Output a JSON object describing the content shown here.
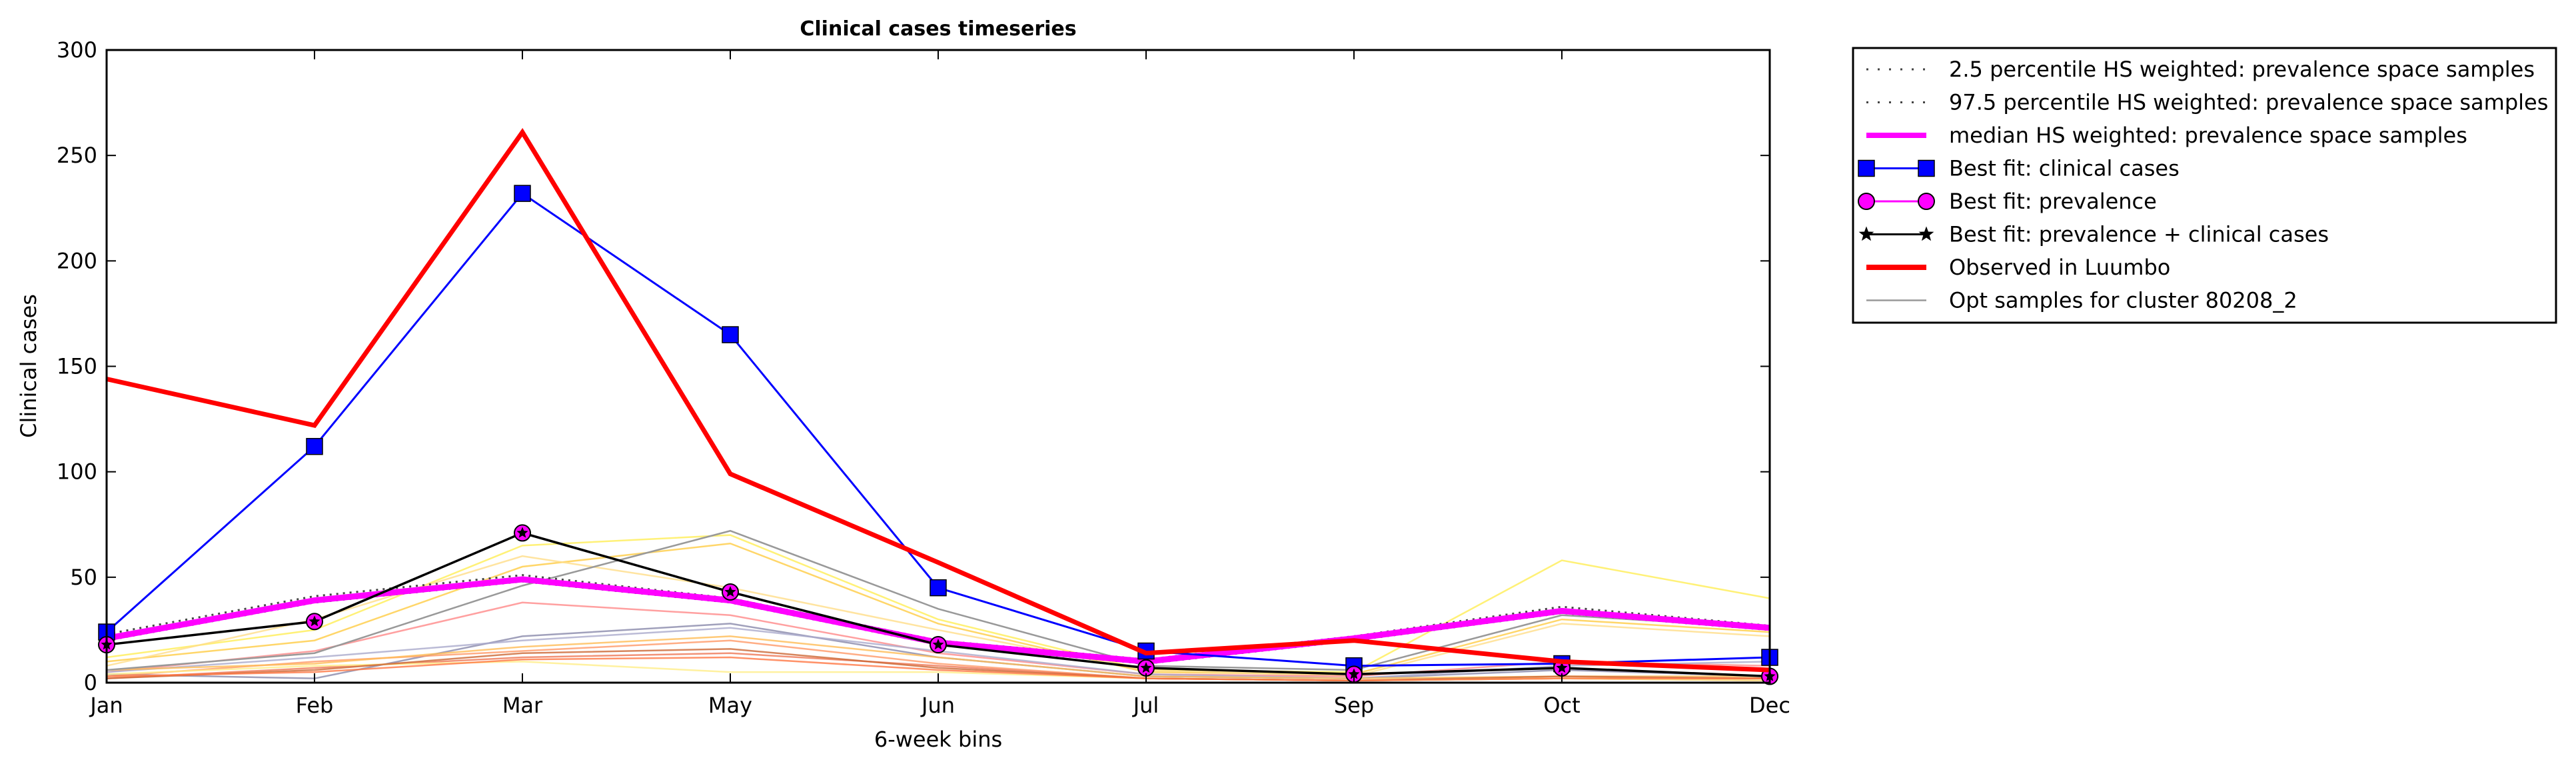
{
  "chart_data": {
    "type": "line",
    "title": "Clinical cases timeseries",
    "xlabel": "6-week bins",
    "ylabel": "Clinical cases",
    "categories": [
      "Jan",
      "Feb",
      "Mar",
      "May",
      "Jun",
      "Jul",
      "Sep",
      "Oct",
      "Dec"
    ],
    "ylim": [
      0,
      300
    ],
    "yticks": [
      0,
      50,
      100,
      150,
      200,
      250,
      300
    ],
    "grid": false,
    "legend_placement": "outside top-right",
    "series": [
      {
        "name": "2.5 percentile HS weighted: prevalence space samples",
        "style": "dotted",
        "color": "#444444",
        "values": [
          20,
          38,
          48,
          38,
          18,
          9,
          20,
          33,
          25
        ]
      },
      {
        "name": "97.5 percentile HS weighted: prevalence space samples",
        "style": "dotted",
        "color": "#444444",
        "values": [
          23,
          41,
          51,
          40,
          20,
          11,
          22,
          36,
          27
        ]
      },
      {
        "name": "median HS weighted: prevalence space samples",
        "style": "thick-line",
        "color": "#ff00ff",
        "values": [
          21,
          39,
          49,
          39,
          19,
          10,
          21,
          34,
          26
        ]
      },
      {
        "name": "Best fit: clinical cases",
        "style": "line-square",
        "color": "#0000ff",
        "values": [
          24,
          112,
          232,
          165,
          45,
          15,
          8,
          9,
          12
        ]
      },
      {
        "name": "Best fit: prevalence",
        "style": "line-circle",
        "color": "#ff00ff",
        "values": [
          18,
          29,
          71,
          43,
          18,
          7,
          4,
          7,
          3
        ]
      },
      {
        "name": "Best fit: prevalence + clinical cases",
        "style": "line-star",
        "color": "#000000",
        "values": [
          18,
          29,
          71,
          43,
          18,
          7,
          4,
          7,
          3
        ]
      },
      {
        "name": "Observed in Luumbo",
        "style": "thick-line",
        "color": "#ff0000",
        "values": [
          144,
          122,
          261,
          99,
          57,
          14,
          20,
          10,
          6
        ]
      },
      {
        "name": "Opt samples for cluster 80208_2",
        "style": "thin-line",
        "color": "#999999",
        "values": [
          6,
          14,
          46,
          72,
          35,
          8,
          6,
          32,
          26
        ]
      }
    ],
    "background_samples": [
      {
        "color": "#ffee55",
        "values": [
          12,
          25,
          65,
          70,
          30,
          6,
          5,
          58,
          40
        ]
      },
      {
        "color": "#ffcc44",
        "values": [
          10,
          20,
          55,
          66,
          28,
          5,
          4,
          30,
          24
        ]
      },
      {
        "color": "#ffdd88",
        "values": [
          8,
          30,
          60,
          45,
          25,
          6,
          3,
          28,
          22
        ]
      },
      {
        "color": "#ff8888",
        "values": [
          5,
          15,
          38,
          32,
          14,
          4,
          3,
          10,
          8
        ]
      },
      {
        "color": "#8888aa",
        "values": [
          4,
          2,
          22,
          28,
          12,
          3,
          2,
          6,
          3
        ]
      },
      {
        "color": "#aaaacc",
        "values": [
          5,
          12,
          20,
          26,
          15,
          4,
          2,
          8,
          10
        ]
      },
      {
        "color": "#ff9966",
        "values": [
          3,
          10,
          15,
          20,
          9,
          2,
          1,
          2,
          2
        ]
      },
      {
        "color": "#ee7755",
        "values": [
          2,
          7,
          12,
          14,
          8,
          2,
          1,
          2,
          1
        ]
      },
      {
        "color": "#ffbb55",
        "values": [
          6,
          9,
          17,
          22,
          12,
          3,
          2,
          3,
          3
        ]
      },
      {
        "color": "#ffee88",
        "values": [
          4,
          8,
          10,
          5,
          5,
          2,
          1,
          2,
          1
        ]
      },
      {
        "color": "#cc6633",
        "values": [
          2,
          6,
          14,
          16,
          7,
          2,
          1,
          3,
          2
        ]
      },
      {
        "color": "#ff7744",
        "values": [
          3,
          5,
          11,
          12,
          6,
          2,
          1,
          2,
          2
        ]
      }
    ]
  }
}
